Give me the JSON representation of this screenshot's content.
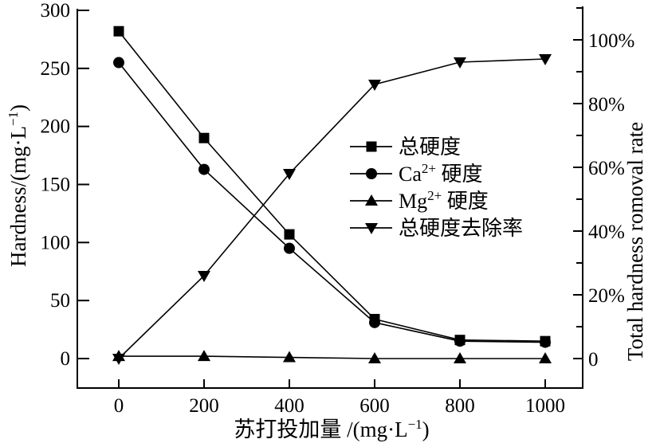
{
  "figure": {
    "background": "#ffffff",
    "ink": "#000000"
  },
  "chart_data": {
    "type": "line",
    "grid": false,
    "x": [
      0,
      200,
      400,
      600,
      800,
      1000
    ],
    "x_axis": {
      "title_parts": [
        {
          "t": "苏打投加量 /(mg·L"
        },
        {
          "t": "−1",
          "sup": true
        },
        {
          "t": ")"
        }
      ],
      "tick_values": [
        0,
        200,
        400,
        600,
        800,
        1000
      ],
      "tick_labels": [
        "0",
        "200",
        "400",
        "600",
        "800",
        "1000"
      ],
      "range": [
        0,
        1000
      ]
    },
    "left_axis": {
      "title_parts": [
        {
          "t": "Hardness/(mg·L"
        },
        {
          "t": "−1",
          "sup": true
        },
        {
          "t": ")"
        }
      ],
      "tick_values": [
        300,
        250,
        200,
        150,
        100,
        50,
        0
      ],
      "tick_labels": [
        "300",
        "250",
        "200",
        "150",
        "100",
        "50",
        "0"
      ],
      "range": [
        0,
        300
      ]
    },
    "right_axis": {
      "title_parts": [
        {
          "t": "Total hardness romoval rate"
        }
      ],
      "tick_values": [
        100,
        80,
        60,
        40,
        20,
        0
      ],
      "tick_labels": [
        "100%",
        "80%",
        "60%",
        "40%",
        "20%",
        "0"
      ],
      "minor_tick_values": [
        110,
        90,
        70,
        50,
        30,
        10
      ],
      "range": [
        0,
        100
      ]
    },
    "series": [
      {
        "name": "total-hardness",
        "axis": "left",
        "marker": "square",
        "values": [
          282,
          190,
          107,
          34,
          16,
          15
        ],
        "label_parts": [
          {
            "t": "总硬度"
          }
        ]
      },
      {
        "name": "ca-hardness",
        "axis": "left",
        "marker": "circle",
        "values": [
          255,
          163,
          95,
          31,
          15,
          14
        ],
        "label_parts": [
          {
            "t": "Ca"
          },
          {
            "t": "2+",
            "sup": true
          },
          {
            "t": " 硬度"
          }
        ]
      },
      {
        "name": "mg-hardness",
        "axis": "left",
        "marker": "triangle-up",
        "values": [
          2,
          2,
          1,
          0,
          0,
          0
        ],
        "label_parts": [
          {
            "t": "Mg"
          },
          {
            "t": "2+",
            "sup": true
          },
          {
            "t": " 硬度"
          }
        ]
      },
      {
        "name": "total-hardness-removal-rate",
        "axis": "right",
        "marker": "triangle-down",
        "values": [
          0,
          26,
          58,
          86,
          93,
          94
        ],
        "label_parts": [
          {
            "t": "总硬度去除率"
          }
        ]
      }
    ],
    "legend": {
      "position": "center-right"
    }
  }
}
